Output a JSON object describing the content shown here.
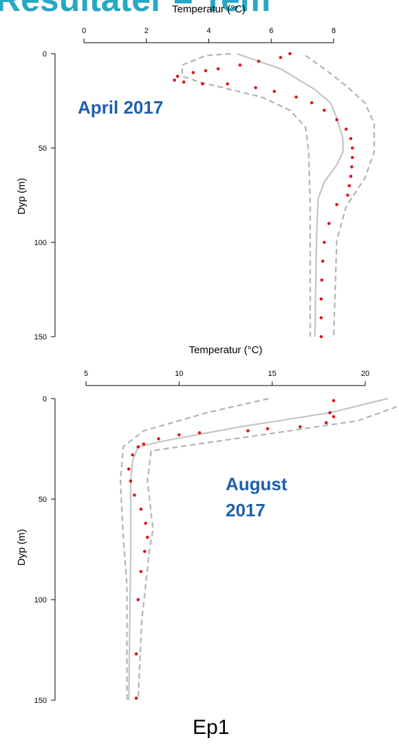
{
  "title": "Resultater – Tem",
  "footer": "Ep1",
  "chart_data": [
    {
      "type": "line",
      "xlabel": "Temperatur (°C)",
      "ylabel": "Dyp (m)",
      "annotation": "April 2017",
      "xlim": [
        0,
        8
      ],
      "xticks": [
        0,
        2,
        4,
        6,
        8
      ],
      "ylim": [
        0,
        150
      ],
      "yticks": [
        0,
        50,
        100,
        150
      ],
      "series": [
        {
          "color": "#b3b3b3",
          "dashed": true,
          "marker": false,
          "temperature": [
            4.7,
            3.9,
            3.15,
            3.15,
            3.7,
            5.7,
            6.6,
            7.1,
            7.2,
            7.25,
            7.25
          ],
          "depth": [
            0,
            1,
            6,
            12,
            15,
            23,
            30,
            39,
            52,
            81,
            150
          ]
        },
        {
          "color": "#b3b3b3",
          "dashed": true,
          "marker": false,
          "temperature": [
            7.1,
            7.7,
            8.4,
            9.0,
            9.3,
            9.3,
            9.0,
            8.4,
            8.1,
            8.0
          ],
          "depth": [
            1,
            8,
            17,
            26,
            37,
            52,
            66,
            81,
            99,
            150
          ]
        },
        {
          "color": "#c4c4c4",
          "dashed": false,
          "marker": false,
          "temperature": [
            4.9,
            6.3,
            7.4,
            7.9,
            8.1,
            8.3,
            8.3,
            8.1,
            7.7,
            7.5,
            7.45,
            7.4
          ],
          "depth": [
            0,
            8,
            19,
            26,
            34,
            45,
            52,
            59,
            68,
            77,
            99,
            150
          ]
        },
        {
          "color": "#e0141e",
          "dashed": false,
          "marker": true,
          "temperature": [
            6.6,
            6.3,
            5.6,
            5.0,
            4.3,
            3.9,
            3.5,
            3.0,
            2.9,
            3.2,
            3.8,
            4.6,
            5.5,
            6.1,
            6.8,
            7.3,
            7.7,
            8.1,
            8.4,
            8.55,
            8.6,
            8.6,
            8.58,
            8.55,
            8.5,
            8.45,
            8.1,
            7.85,
            7.7,
            7.65,
            7.62,
            7.6,
            7.6,
            7.6
          ],
          "depth": [
            0,
            2,
            4,
            6,
            8,
            9,
            10,
            12,
            14,
            15,
            16,
            16,
            18,
            20,
            23,
            26,
            30,
            35,
            40,
            45,
            50,
            55,
            60,
            65,
            70,
            75,
            80,
            90,
            100,
            110,
            120,
            130,
            140,
            150
          ]
        }
      ]
    },
    {
      "type": "line",
      "xlabel": "Temperatur (°C)",
      "ylabel": "Dyp (m)",
      "annotation": "August 2017",
      "xlim": [
        5,
        20
      ],
      "xticks": [
        5,
        10,
        15,
        20
      ],
      "ylim": [
        0,
        150
      ],
      "yticks": [
        0,
        50,
        100,
        150
      ],
      "series": [
        {
          "color": "#b3b3b3",
          "dashed": true,
          "marker": false,
          "temperature": [
            14.8,
            11.5,
            8.1,
            7.0,
            6.85,
            7.0,
            7.2,
            7.2
          ],
          "depth": [
            0,
            7,
            16,
            24,
            41,
            69,
            93,
            150
          ]
        },
        {
          "color": "#b3b3b3",
          "dashed": true,
          "marker": false,
          "temperature": [
            21.7,
            19.6,
            15.2,
            10.7,
            8.5,
            8.3,
            8.6,
            8.4,
            8.0,
            7.8
          ],
          "depth": [
            4,
            11,
            17,
            23,
            26,
            41,
            65,
            76,
            110,
            150
          ]
        },
        {
          "color": "#c4c4c4",
          "dashed": false,
          "marker": false,
          "temperature": [
            21.2,
            18.1,
            13.3,
            9.2,
            7.8,
            7.5,
            7.4,
            7.4,
            7.3
          ],
          "depth": [
            0,
            7,
            14,
            21,
            24,
            31,
            41,
            76,
            150
          ]
        },
        {
          "color": "#e0141e",
          "dashed": false,
          "marker": true,
          "temperature": [
            18.3,
            18.1,
            18.3,
            17.9,
            16.5,
            14.75,
            13.7,
            11.1,
            10.0,
            8.9,
            8.1,
            7.8,
            7.5,
            7.3,
            7.4,
            7.6,
            7.95,
            8.2,
            8.3,
            8.15,
            7.95,
            7.8,
            7.7,
            7.7
          ],
          "depth": [
            1,
            7,
            9,
            12,
            14,
            15,
            16,
            17,
            18,
            20,
            22.6,
            24,
            28,
            35,
            41,
            48,
            55,
            62,
            69,
            76,
            86,
            100,
            127,
            149
          ]
        }
      ]
    }
  ]
}
